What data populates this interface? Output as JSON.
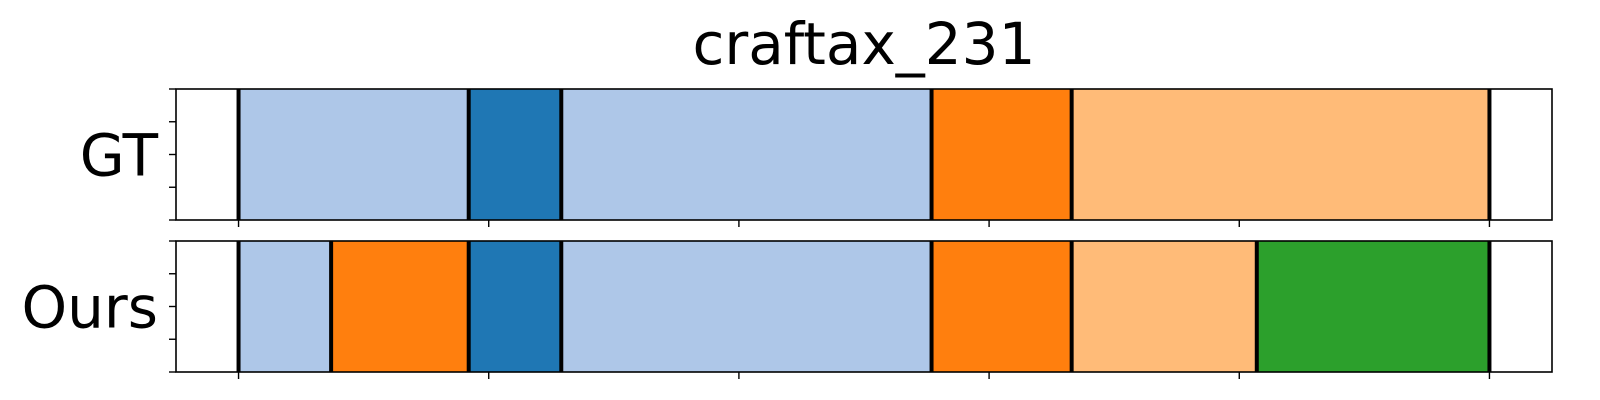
{
  "chart_data": {
    "type": "segment-timeline",
    "title": "craftax_231",
    "x_range": [
      0,
      525
    ],
    "x_ticks": [
      25,
      125,
      225,
      325,
      425,
      525
    ],
    "rows": [
      {
        "label": "GT",
        "segments": [
          {
            "start": 0,
            "end": 25,
            "color": "#ffffff"
          },
          {
            "start": 25,
            "end": 117,
            "color": "#aec7e8"
          },
          {
            "start": 117,
            "end": 154,
            "color": "#1f77b4"
          },
          {
            "start": 154,
            "end": 302,
            "color": "#aec7e8"
          },
          {
            "start": 302,
            "end": 358,
            "color": "#ff7f0e"
          },
          {
            "start": 358,
            "end": 525,
            "color": "#ffbb78"
          },
          {
            "start": 525,
            "end": 550,
            "color": "#ffffff"
          }
        ],
        "boundaries": [
          25,
          117,
          154,
          302,
          358,
          525
        ]
      },
      {
        "label": "Ours",
        "segments": [
          {
            "start": 0,
            "end": 25,
            "color": "#ffffff"
          },
          {
            "start": 25,
            "end": 62,
            "color": "#aec7e8"
          },
          {
            "start": 62,
            "end": 117,
            "color": "#ff7f0e"
          },
          {
            "start": 117,
            "end": 154,
            "color": "#1f77b4"
          },
          {
            "start": 154,
            "end": 302,
            "color": "#aec7e8"
          },
          {
            "start": 302,
            "end": 358,
            "color": "#ff7f0e"
          },
          {
            "start": 358,
            "end": 432,
            "color": "#ffbb78"
          },
          {
            "start": 432,
            "end": 525,
            "color": "#2ca02c"
          },
          {
            "start": 525,
            "end": 550,
            "color": "#ffffff"
          }
        ],
        "boundaries": [
          25,
          62,
          117,
          154,
          302,
          358,
          432,
          525
        ]
      }
    ]
  }
}
